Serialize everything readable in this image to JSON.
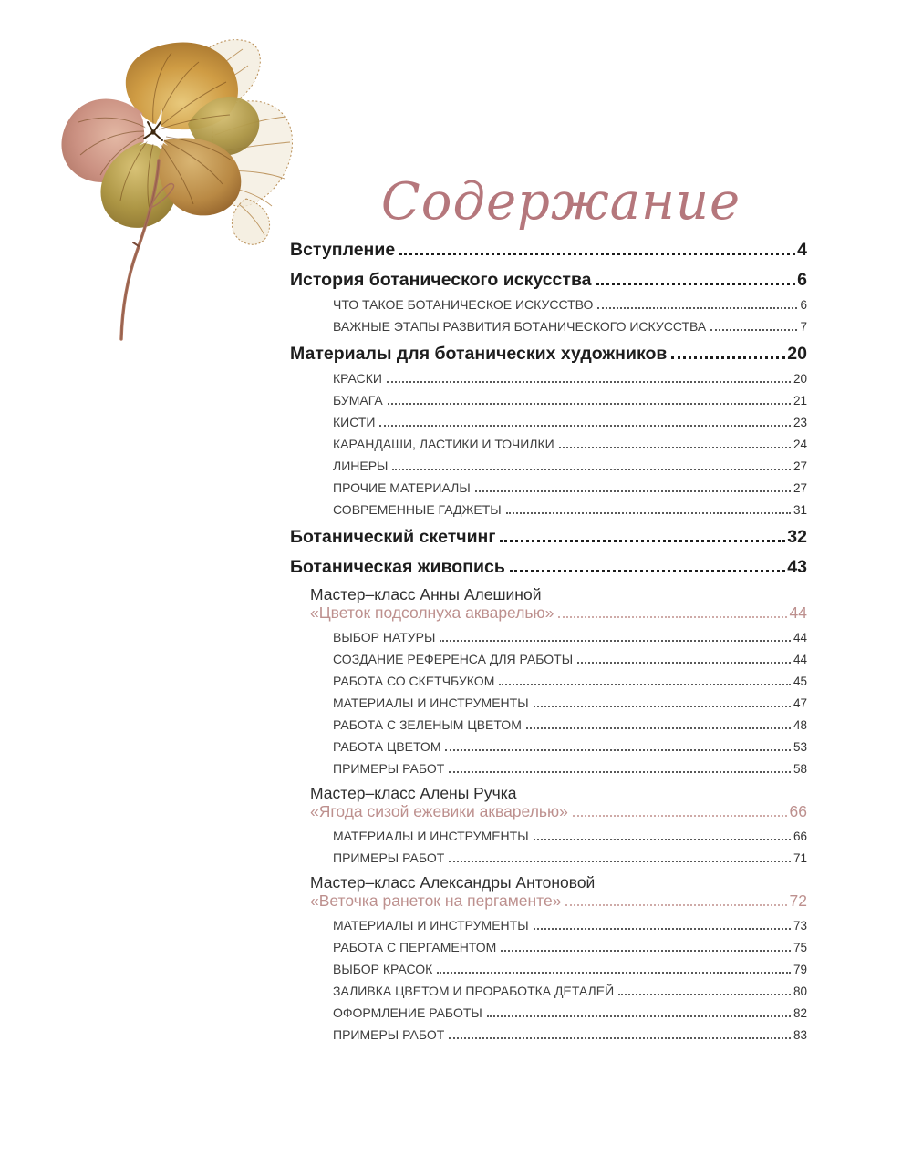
{
  "page": {
    "title": "Содержание",
    "title_color": "#b5777c",
    "background_color": "#ffffff"
  },
  "artwork": {
    "label": "dried pressed hydrangea flower watercolor",
    "palette": {
      "gold": "#cf9c44",
      "ochre": "#a8762f",
      "rose": "#cb9182",
      "olive": "#ac9544",
      "brown": "#8a5a26",
      "lace": "#f2ebdb",
      "lace_vein": "#b98f57",
      "stem": "#a9705a"
    }
  },
  "toc": {
    "accent_color": "#bd908e",
    "entries": [
      {
        "level": "h1",
        "label": "Вступление",
        "page": "4"
      },
      {
        "level": "h1",
        "label": "История ботанического искусства",
        "page": "6"
      },
      {
        "level": "sub",
        "label": "ЧТО ТАКОЕ БОТАНИЧЕСКОЕ ИСКУССТВО",
        "page": "6"
      },
      {
        "level": "sub",
        "label": "ВАЖНЫЕ ЭТАПЫ РАЗВИТИЯ БОТАНИЧЕСКОГО ИСКУССТВА",
        "page": "7"
      },
      {
        "level": "h1",
        "label": "Материалы для ботанических художников",
        "page": "20"
      },
      {
        "level": "sub",
        "label": "КРАСКИ",
        "page": "20"
      },
      {
        "level": "sub",
        "label": "БУМАГА",
        "page": "21"
      },
      {
        "level": "sub",
        "label": "КИСТИ",
        "page": "23"
      },
      {
        "level": "sub",
        "label": "КАРАНДАШИ, ЛАСТИКИ И ТОЧИЛКИ",
        "page": "24"
      },
      {
        "level": "sub",
        "label": "ЛИНЕРЫ",
        "page": "27"
      },
      {
        "level": "sub",
        "label": "ПРОЧИЕ МАТЕРИАЛЫ",
        "page": "27"
      },
      {
        "level": "sub",
        "label": "СОВРЕМЕННЫЕ ГАДЖЕТЫ",
        "page": "31"
      },
      {
        "level": "h1",
        "label": "Ботанический скетчинг",
        "page": "32"
      },
      {
        "level": "h1",
        "label": "Ботаническая живопись",
        "page": "43"
      },
      {
        "level": "name",
        "label": "Мастер–класс Анны Алешиной",
        "page": ""
      },
      {
        "level": "quote",
        "label": "«Цветок подсолнуха акварелью»",
        "page": "44"
      },
      {
        "level": "sub",
        "label": "ВЫБОР НАТУРЫ",
        "page": "44"
      },
      {
        "level": "sub",
        "label": "СОЗДАНИЕ РЕФЕРЕНСА ДЛЯ РАБОТЫ",
        "page": "44"
      },
      {
        "level": "sub",
        "label": "РАБОТА СО СКЕТЧБУКОМ",
        "page": "45"
      },
      {
        "level": "sub",
        "label": "МАТЕРИАЛЫ И ИНСТРУМЕНТЫ",
        "page": "47"
      },
      {
        "level": "sub",
        "label": "РАБОТА С ЗЕЛЕНЫМ ЦВЕТОМ",
        "page": "48"
      },
      {
        "level": "sub",
        "label": "РАБОТА ЦВЕТОМ",
        "page": "53"
      },
      {
        "level": "sub",
        "label": "ПРИМЕРЫ РАБОТ",
        "page": "58"
      },
      {
        "level": "name",
        "label": "Мастер–класс Алены Ручка",
        "page": ""
      },
      {
        "level": "quote",
        "label": "«Ягода сизой ежевики акварелью»",
        "page": "66"
      },
      {
        "level": "sub",
        "label": "МАТЕРИАЛЫ И ИНСТРУМЕНТЫ",
        "page": "66"
      },
      {
        "level": "sub",
        "label": "ПРИМЕРЫ РАБОТ",
        "page": "71"
      },
      {
        "level": "name",
        "label": "Мастер–класс Александры Антоновой",
        "page": ""
      },
      {
        "level": "quote",
        "label": "«Веточка ранеток на пергаменте»",
        "page": "72"
      },
      {
        "level": "sub",
        "label": "МАТЕРИАЛЫ И ИНСТРУМЕНТЫ",
        "page": "73"
      },
      {
        "level": "sub",
        "label": "РАБОТА С ПЕРГАМЕНТОМ",
        "page": "75"
      },
      {
        "level": "sub",
        "label": "ВЫБОР КРАСОК",
        "page": "79"
      },
      {
        "level": "sub",
        "label": "ЗАЛИВКА ЦВЕТОМ И ПРОРАБОТКА ДЕТАЛЕЙ",
        "page": "80"
      },
      {
        "level": "sub",
        "label": "ОФОРМЛЕНИЕ РАБОТЫ",
        "page": "82"
      },
      {
        "level": "sub",
        "label": "ПРИМЕРЫ РАБОТ",
        "page": "83"
      }
    ]
  }
}
